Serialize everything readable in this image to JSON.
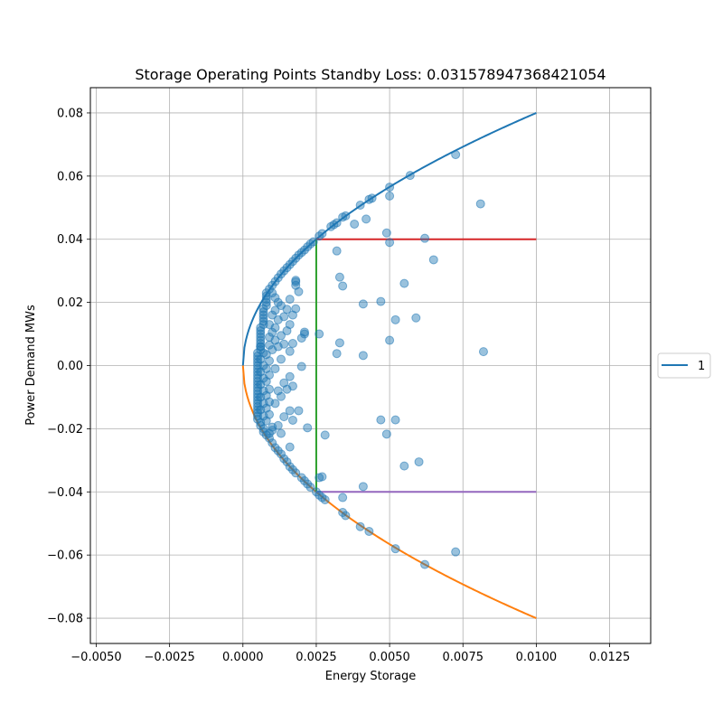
{
  "chart_data": {
    "type": "scatter",
    "title": "Storage Operating Points Standby Loss: 0.031578947368421054",
    "xlabel": "Energy Storage",
    "ylabel": "Power Demand MWs",
    "xlim": [
      -0.0052,
      0.0139
    ],
    "ylim": [
      -0.088,
      0.088
    ],
    "x_ticks": [
      -0.005,
      -0.0025,
      0.0,
      0.0025,
      0.005,
      0.0075,
      0.01,
      0.0125
    ],
    "x_tick_labels": [
      "−0.0050",
      "−0.0025",
      "0.0000",
      "0.0025",
      "0.0050",
      "0.0075",
      "0.0100",
      "0.0125"
    ],
    "y_ticks": [
      -0.08,
      -0.06,
      -0.04,
      -0.02,
      0.0,
      0.02,
      0.04,
      0.06,
      0.08
    ],
    "y_tick_labels": [
      "−0.08",
      "−0.06",
      "−0.04",
      "−0.02",
      "0.00",
      "0.02",
      "0.04",
      "0.06",
      "0.08"
    ],
    "grid": true,
    "legend": {
      "location": "center-right-outside",
      "entries": [
        "1"
      ]
    },
    "colors": {
      "upper_curve": "#1f77b4",
      "lower_curve": "#ff7f0e",
      "vertical_line": "#2ca02c",
      "upper_limit": "#d62728",
      "lower_limit": "#9467bd",
      "points": "#1f77b4"
    },
    "curves": {
      "upper": {
        "formula": "y = 0.8 * sqrt(x)",
        "x_range": [
          0.0,
          0.01
        ],
        "legend": "1"
      },
      "lower": {
        "formula": "y = -0.8 * sqrt(x)",
        "x_range": [
          0.0,
          0.01
        ]
      }
    },
    "lines": {
      "vertical": {
        "x": 0.0025,
        "y_range": [
          -0.04,
          0.04
        ]
      },
      "upper_limit": {
        "y": 0.04,
        "x_range": [
          0.0025,
          0.01
        ]
      },
      "lower_limit": {
        "y": -0.04,
        "x_range": [
          0.0025,
          0.01
        ]
      }
    },
    "scatter_points": [
      [
        0.00725,
        0.0668
      ],
      [
        0.0057,
        0.0602
      ],
      [
        0.005,
        0.0565
      ],
      [
        0.005,
        0.0537
      ],
      [
        0.0044,
        0.053
      ],
      [
        0.0043,
        0.0526
      ],
      [
        0.004,
        0.0508
      ],
      [
        0.0042,
        0.0464
      ],
      [
        0.0035,
        0.0474
      ],
      [
        0.0034,
        0.047
      ],
      [
        0.0032,
        0.0452
      ],
      [
        0.0031,
        0.0446
      ],
      [
        0.003,
        0.044
      ],
      [
        0.0038,
        0.0448
      ],
      [
        0.0027,
        0.0418
      ],
      [
        0.0026,
        0.041
      ],
      [
        0.0024,
        0.0392
      ],
      [
        0.0023,
        0.0385
      ],
      [
        0.0022,
        0.0376
      ],
      [
        0.0021,
        0.0366
      ],
      [
        0.002,
        0.0358
      ],
      [
        0.0019,
        0.035
      ],
      [
        0.0018,
        0.034
      ],
      [
        0.0017,
        0.033
      ],
      [
        0.0016,
        0.032
      ],
      [
        0.0015,
        0.031
      ],
      [
        0.0014,
        0.03
      ],
      [
        0.0013,
        0.029
      ],
      [
        0.0012,
        0.0278
      ],
      [
        0.0011,
        0.0266
      ],
      [
        0.001,
        0.0254
      ],
      [
        0.0009,
        0.0242
      ],
      [
        0.0008,
        0.023
      ],
      [
        0.0008,
        0.022
      ],
      [
        0.0008,
        0.021
      ],
      [
        0.0008,
        0.02
      ],
      [
        0.0008,
        0.019
      ],
      [
        0.0007,
        0.018
      ],
      [
        0.0007,
        0.017
      ],
      [
        0.0007,
        0.016
      ],
      [
        0.0007,
        0.015
      ],
      [
        0.0007,
        0.014
      ],
      [
        0.0007,
        0.013
      ],
      [
        0.0006,
        0.012
      ],
      [
        0.0006,
        0.011
      ],
      [
        0.0006,
        0.01
      ],
      [
        0.0006,
        0.009
      ],
      [
        0.0006,
        0.008
      ],
      [
        0.0006,
        0.007
      ],
      [
        0.0006,
        0.006
      ],
      [
        0.0006,
        0.005
      ],
      [
        0.0005,
        0.004
      ],
      [
        0.0005,
        0.003
      ],
      [
        0.0005,
        0.002
      ],
      [
        0.0005,
        0.001
      ],
      [
        0.0005,
        0.0
      ],
      [
        0.0005,
        -0.001
      ],
      [
        0.0005,
        -0.002
      ],
      [
        0.0005,
        -0.003
      ],
      [
        0.0005,
        -0.004
      ],
      [
        0.0005,
        -0.005
      ],
      [
        0.0005,
        -0.006
      ],
      [
        0.0005,
        -0.007
      ],
      [
        0.0005,
        -0.008
      ],
      [
        0.0005,
        -0.009
      ],
      [
        0.0005,
        -0.01
      ],
      [
        0.0005,
        -0.011
      ],
      [
        0.0005,
        -0.012
      ],
      [
        0.0005,
        -0.013
      ],
      [
        0.0005,
        -0.014
      ],
      [
        0.0005,
        -0.015
      ],
      [
        0.0005,
        -0.016
      ],
      [
        0.0005,
        -0.017
      ],
      [
        0.0006,
        -0.018
      ],
      [
        0.0006,
        -0.019
      ],
      [
        0.0007,
        -0.02
      ],
      [
        0.0007,
        -0.021
      ],
      [
        0.0008,
        -0.022
      ],
      [
        0.0009,
        -0.023
      ],
      [
        0.001,
        -0.0245
      ],
      [
        0.0011,
        -0.026
      ],
      [
        0.0012,
        -0.027
      ],
      [
        0.0013,
        -0.028
      ],
      [
        0.0014,
        -0.0295
      ],
      [
        0.0015,
        -0.0305
      ],
      [
        0.0016,
        -0.032
      ],
      [
        0.0017,
        -0.033
      ],
      [
        0.0018,
        -0.034
      ],
      [
        0.002,
        -0.0355
      ],
      [
        0.0021,
        -0.0365
      ],
      [
        0.0022,
        -0.0375
      ],
      [
        0.0023,
        -0.0385
      ],
      [
        0.0025,
        -0.04
      ],
      [
        0.0026,
        -0.041
      ],
      [
        0.0027,
        -0.0418
      ],
      [
        0.0028,
        -0.0425
      ],
      [
        0.0034,
        -0.0465
      ],
      [
        0.0035,
        -0.0475
      ],
      [
        0.004,
        -0.051
      ],
      [
        0.0043,
        -0.0525
      ],
      [
        0.0052,
        -0.058
      ],
      [
        0.0062,
        -0.063
      ],
      [
        0.00725,
        -0.059
      ],
      [
        0.0081,
        0.0512
      ],
      [
        0.0062,
        0.0403
      ],
      [
        0.005,
        0.039
      ],
      [
        0.0049,
        0.042
      ],
      [
        0.0065,
        0.0335
      ],
      [
        0.0032,
        0.0363
      ],
      [
        0.0033,
        0.028
      ],
      [
        0.0034,
        0.0252
      ],
      [
        0.0055,
        0.026
      ],
      [
        0.0047,
        0.0203
      ],
      [
        0.0041,
        0.0195
      ],
      [
        0.0059,
        0.0151
      ],
      [
        0.0052,
        0.0145
      ],
      [
        0.0082,
        0.0044
      ],
      [
        0.005,
        0.008
      ],
      [
        0.0041,
        0.0032
      ],
      [
        0.0033,
        0.0072
      ],
      [
        0.0032,
        0.0038
      ],
      [
        0.0026,
        0.01
      ],
      [
        0.0021,
        0.0106
      ],
      [
        0.0021,
        0.01
      ],
      [
        0.002,
        0.0087
      ],
      [
        0.002,
        -0.0003
      ],
      [
        0.0022,
        -0.0197
      ],
      [
        0.0028,
        -0.022
      ],
      [
        0.0047,
        -0.0172
      ],
      [
        0.0052,
        -0.0172
      ],
      [
        0.0049,
        -0.0217
      ],
      [
        0.0055,
        -0.0318
      ],
      [
        0.006,
        -0.0305
      ],
      [
        0.0041,
        -0.0383
      ],
      [
        0.0027,
        -0.0352
      ],
      [
        0.0026,
        -0.0355
      ],
      [
        0.0034,
        -0.0418
      ],
      [
        0.0018,
        0.027
      ],
      [
        0.0018,
        0.0254
      ],
      [
        0.0018,
        0.0265
      ],
      [
        0.0019,
        0.0234
      ],
      [
        0.0016,
        0.021
      ],
      [
        0.0018,
        0.018
      ],
      [
        0.0015,
        0.0178
      ],
      [
        0.0017,
        0.016
      ],
      [
        0.0014,
        0.0155
      ],
      [
        0.0016,
        0.013
      ],
      [
        0.0015,
        0.011
      ],
      [
        0.0013,
        0.0095
      ],
      [
        0.0017,
        0.007
      ],
      [
        0.0014,
        0.0068
      ],
      [
        0.0012,
        0.006
      ],
      [
        0.0016,
        0.0045
      ],
      [
        0.0013,
        0.002
      ],
      [
        0.0011,
        -0.001
      ],
      [
        0.0016,
        -0.0035
      ],
      [
        0.0014,
        -0.0055
      ],
      [
        0.0017,
        -0.0065
      ],
      [
        0.0015,
        -0.0075
      ],
      [
        0.0012,
        -0.008
      ],
      [
        0.0013,
        -0.0098
      ],
      [
        0.0011,
        -0.012
      ],
      [
        0.0016,
        -0.0143
      ],
      [
        0.0019,
        -0.0143
      ],
      [
        0.0014,
        -0.0162
      ],
      [
        0.0017,
        -0.0173
      ],
      [
        0.0012,
        -0.019
      ],
      [
        0.001,
        -0.0205
      ],
      [
        0.0013,
        -0.0215
      ],
      [
        0.0016,
        -0.0258
      ],
      [
        0.001,
        0.023
      ],
      [
        0.0011,
        0.0215
      ],
      [
        0.0012,
        0.02
      ],
      [
        0.0013,
        0.019
      ],
      [
        0.0011,
        0.0175
      ],
      [
        0.001,
        0.016
      ],
      [
        0.0012,
        0.0145
      ],
      [
        0.0009,
        0.013
      ],
      [
        0.0011,
        0.012
      ],
      [
        0.001,
        0.0105
      ],
      [
        0.0009,
        0.009
      ],
      [
        0.0011,
        0.008
      ],
      [
        0.0009,
        0.0065
      ],
      [
        0.001,
        0.005
      ],
      [
        0.0008,
        0.0035
      ],
      [
        0.0009,
        0.0015
      ],
      [
        0.0008,
        -0.001
      ],
      [
        0.0009,
        -0.003
      ],
      [
        0.0008,
        -0.005
      ],
      [
        0.0009,
        -0.0075
      ],
      [
        0.0008,
        -0.0095
      ],
      [
        0.0009,
        -0.0115
      ],
      [
        0.0008,
        -0.0135
      ],
      [
        0.0009,
        -0.0155
      ],
      [
        0.0008,
        -0.0175
      ],
      [
        0.001,
        -0.0195
      ],
      [
        0.0009,
        -0.0215
      ],
      [
        0.0006,
        0.006
      ],
      [
        0.0007,
        0.004
      ],
      [
        0.0006,
        0.002
      ],
      [
        0.0007,
        0.0
      ],
      [
        0.0006,
        -0.002
      ],
      [
        0.0007,
        -0.004
      ],
      [
        0.0006,
        -0.006
      ],
      [
        0.0007,
        -0.008
      ],
      [
        0.0006,
        -0.01
      ],
      [
        0.0007,
        -0.012
      ],
      [
        0.0006,
        -0.014
      ],
      [
        0.0007,
        -0.016
      ]
    ]
  }
}
